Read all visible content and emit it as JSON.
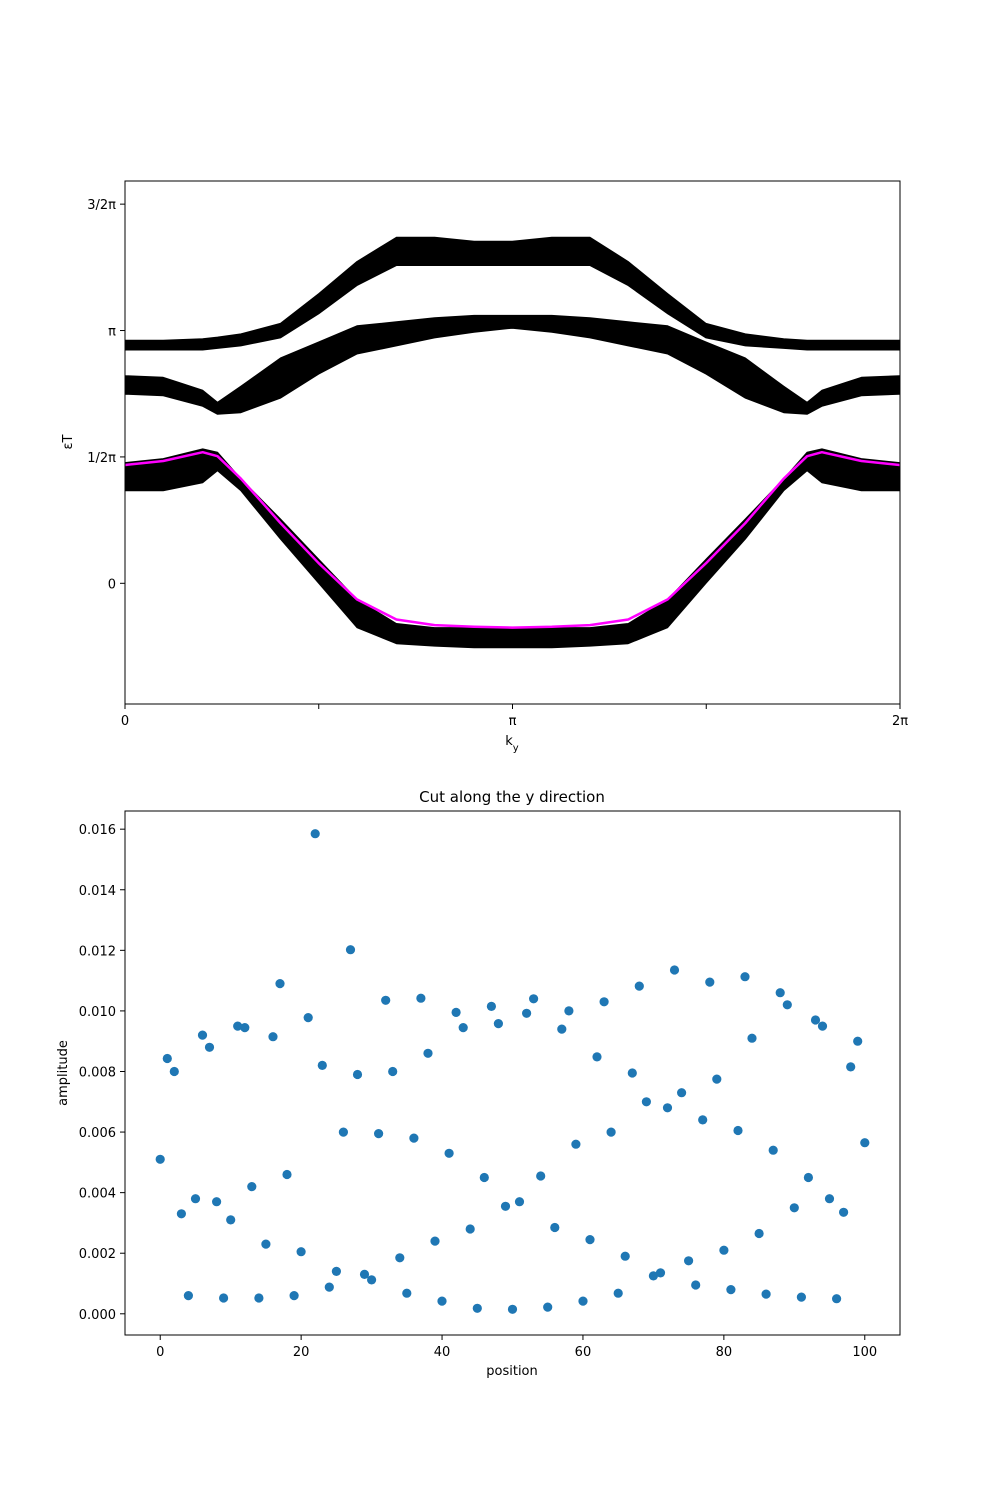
{
  "colors": {
    "band_fill": "#000000",
    "edge_state": "#ff00ff",
    "marker": "#1f77b4",
    "axis": "#000000",
    "background": "#ffffff"
  },
  "chart_data": [
    {
      "type": "area",
      "title": "",
      "xlabel": "k_y",
      "ylabel": "εT",
      "xlim": [
        0,
        6.2832
      ],
      "ylim": [
        -1.5,
        5.0
      ],
      "x_ticks": [
        {
          "value": 0,
          "label": "0"
        },
        {
          "value": 1.5708,
          "label": ""
        },
        {
          "value": 3.1416,
          "label": "π"
        },
        {
          "value": 4.7124,
          "label": ""
        },
        {
          "value": 6.2832,
          "label": "2π"
        }
      ],
      "y_ticks": [
        {
          "value": 0,
          "label": "0"
        },
        {
          "value": 1.5708,
          "label": "1/2π"
        },
        {
          "value": 3.1416,
          "label": "π"
        },
        {
          "value": 4.7124,
          "label": "3/2π"
        }
      ],
      "grid": false,
      "legend": "none",
      "x": [
        0,
        0.31,
        0.63,
        0.75,
        0.94,
        1.26,
        1.57,
        1.88,
        2.2,
        2.51,
        2.83,
        3.14,
        3.46,
        3.77,
        4.08,
        4.4,
        4.71,
        5.03,
        5.34,
        5.53,
        5.65,
        5.97,
        6.28
      ],
      "series": [
        {
          "name": "",
          "upper": [
            3.02,
            3.02,
            3.04,
            3.06,
            3.1,
            3.23,
            3.6,
            4.0,
            4.3,
            4.3,
            4.25,
            4.25,
            4.3,
            4.3,
            4.0,
            3.6,
            3.23,
            3.1,
            3.04,
            3.02,
            3.02,
            3.02,
            3.02
          ],
          "lower": [
            2.9,
            2.9,
            2.9,
            2.92,
            2.95,
            3.05,
            3.35,
            3.7,
            3.95,
            3.95,
            3.95,
            3.95,
            3.95,
            3.95,
            3.7,
            3.35,
            3.05,
            2.95,
            2.92,
            2.9,
            2.9,
            2.9,
            2.9
          ]
        },
        {
          "name": "",
          "upper": [
            2.58,
            2.56,
            2.4,
            2.25,
            2.45,
            2.8,
            3.0,
            3.2,
            3.25,
            3.3,
            3.33,
            3.33,
            3.33,
            3.3,
            3.25,
            3.2,
            3.0,
            2.8,
            2.45,
            2.25,
            2.4,
            2.56,
            2.58
          ],
          "lower": [
            2.35,
            2.33,
            2.2,
            2.1,
            2.12,
            2.3,
            2.6,
            2.85,
            2.95,
            3.05,
            3.12,
            3.17,
            3.12,
            3.05,
            2.95,
            2.85,
            2.6,
            2.3,
            2.12,
            2.1,
            2.2,
            2.33,
            2.35
          ]
        },
        {
          "name": "",
          "upper": [
            1.5,
            1.55,
            1.67,
            1.63,
            1.3,
            0.8,
            0.3,
            -0.2,
            -0.5,
            -0.55,
            -0.55,
            -0.55,
            -0.55,
            -0.55,
            -0.5,
            -0.2,
            0.3,
            0.8,
            1.3,
            1.63,
            1.67,
            1.55,
            1.5
          ],
          "lower": [
            1.15,
            1.15,
            1.25,
            1.4,
            1.15,
            0.55,
            0.0,
            -0.55,
            -0.75,
            -0.78,
            -0.8,
            -0.8,
            -0.8,
            -0.78,
            -0.75,
            -0.55,
            0.0,
            0.55,
            1.15,
            1.4,
            1.25,
            1.15,
            1.15
          ]
        }
      ],
      "edge_state": {
        "name": "",
        "y": [
          1.47,
          1.52,
          1.63,
          1.58,
          1.3,
          0.75,
          0.25,
          -0.2,
          -0.45,
          -0.52,
          -0.54,
          -0.55,
          -0.54,
          -0.52,
          -0.45,
          -0.2,
          0.25,
          0.75,
          1.3,
          1.58,
          1.63,
          1.52,
          1.47
        ]
      }
    },
    {
      "type": "scatter",
      "title": "Cut along the y direction",
      "xlabel": "position",
      "ylabel": "amplitude",
      "xlim": [
        -5,
        105
      ],
      "ylim": [
        -0.0007,
        0.0166
      ],
      "x_ticks": [
        0,
        20,
        40,
        60,
        80,
        100
      ],
      "y_ticks": [
        "0.000",
        "0.002",
        "0.004",
        "0.006",
        "0.008",
        "0.010",
        "0.012",
        "0.014",
        "0.016"
      ],
      "grid": false,
      "legend": "none",
      "x": [
        0,
        1,
        2,
        3,
        4,
        5,
        6,
        7,
        8,
        9,
        10,
        11,
        12,
        13,
        14,
        15,
        16,
        17,
        18,
        19,
        20,
        21,
        22,
        23,
        24,
        25,
        26,
        27,
        28,
        29,
        30,
        31,
        32,
        33,
        34,
        35,
        36,
        37,
        38,
        39,
        40,
        41,
        42,
        43,
        44,
        45,
        46,
        47,
        48,
        49,
        50,
        51,
        52,
        53,
        54,
        55,
        56,
        57,
        58,
        59,
        60,
        61,
        62,
        63,
        64,
        65,
        66,
        67,
        68,
        69,
        70,
        71,
        72,
        73,
        74,
        75,
        76,
        77,
        78,
        79,
        80,
        81,
        82,
        83,
        84,
        85,
        86,
        87,
        88,
        89,
        90,
        91,
        92,
        93,
        94,
        95,
        96,
        97,
        98,
        99,
        100
      ],
      "y": [
        0.0051,
        0.00843,
        0.008,
        0.0033,
        0.0006,
        0.0038,
        0.0092,
        0.0088,
        0.0037,
        0.00052,
        0.0031,
        0.0095,
        0.00945,
        0.0042,
        0.00052,
        0.0023,
        0.00915,
        0.0109,
        0.0046,
        0.0006,
        0.00205,
        0.00978,
        0.01585,
        0.0082,
        0.00088,
        0.0014,
        0.006,
        0.01202,
        0.0079,
        0.0013,
        0.00112,
        0.00595,
        0.01035,
        0.008,
        0.00185,
        0.00068,
        0.0058,
        0.01042,
        0.0086,
        0.0024,
        0.00042,
        0.0053,
        0.00995,
        0.00945,
        0.0028,
        0.00018,
        0.0045,
        0.01015,
        0.00958,
        0.00355,
        0.00015,
        0.0037,
        0.00992,
        0.0104,
        0.00455,
        0.00022,
        0.00285,
        0.0094,
        0.01,
        0.0056,
        0.00042,
        0.00245,
        0.00848,
        0.0103,
        0.006,
        0.00068,
        0.0019,
        0.00795,
        0.01082,
        0.007,
        0.00125,
        0.00135,
        0.0068,
        0.01135,
        0.0073,
        0.00175,
        0.00095,
        0.0064,
        0.01095,
        0.00775,
        0.0021,
        0.0008,
        0.00605,
        0.01113,
        0.0091,
        0.00265,
        0.00065,
        0.0054,
        0.0106,
        0.0102,
        0.0035,
        0.00055,
        0.0045,
        0.0097,
        0.0095,
        0.0038,
        0.0005,
        0.00335,
        0.00815,
        0.009,
        0.00565
      ]
    }
  ]
}
